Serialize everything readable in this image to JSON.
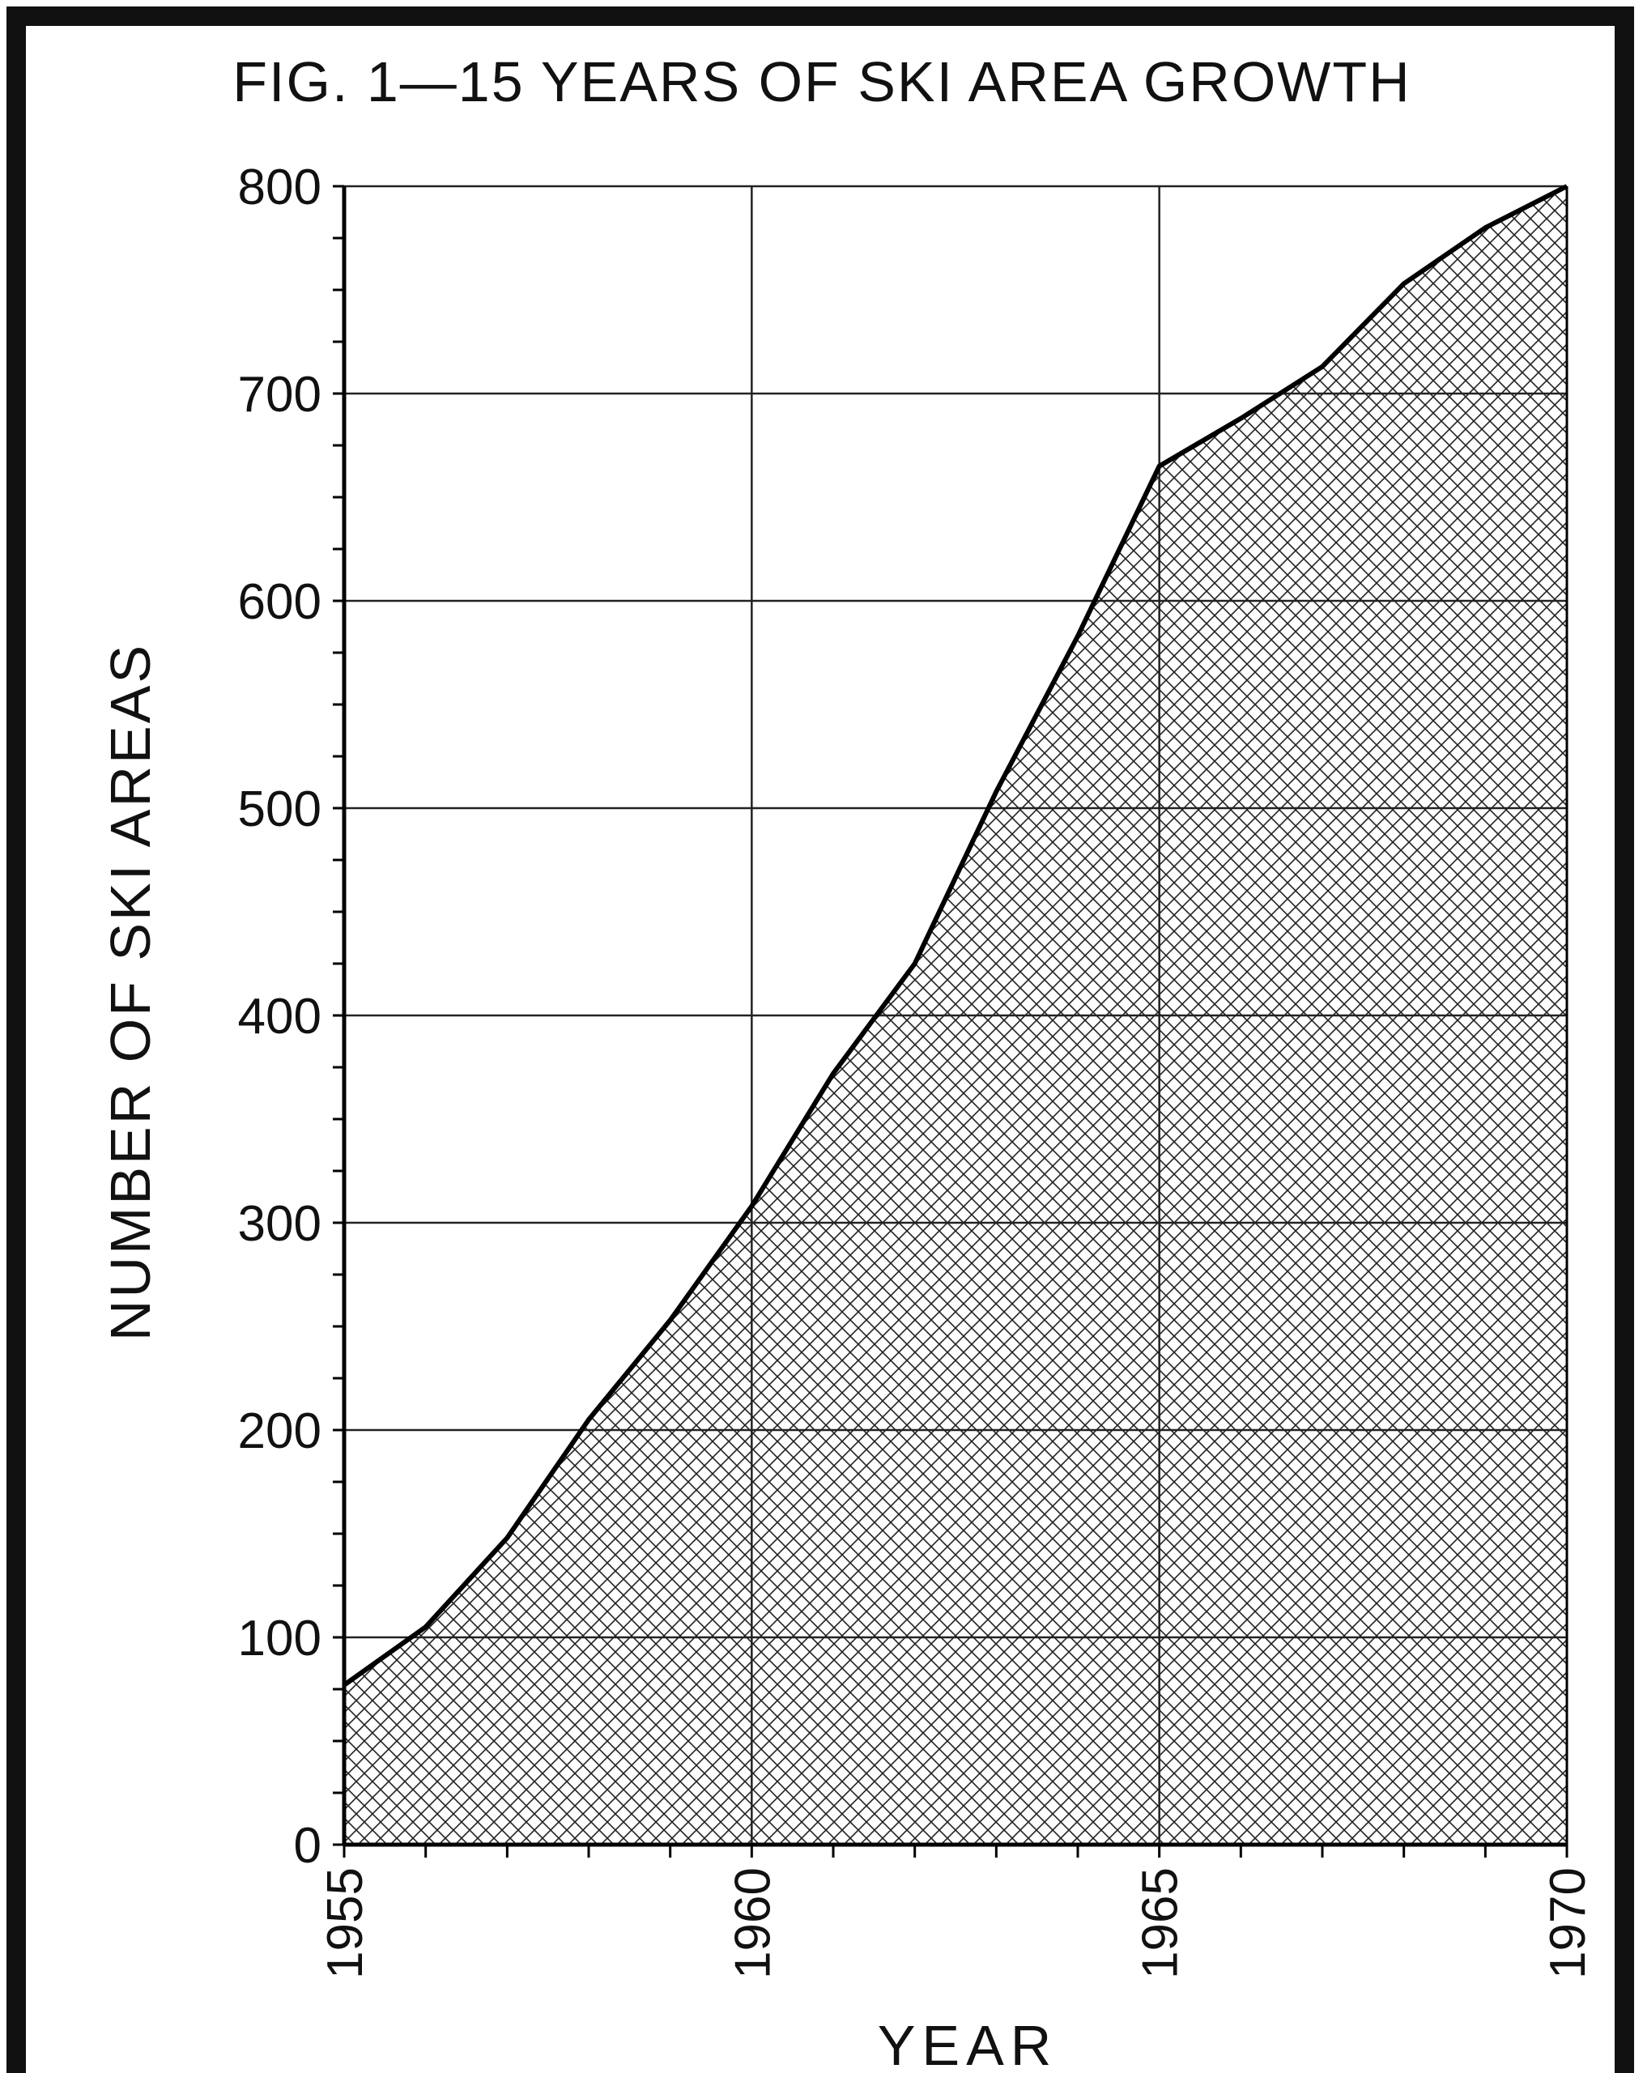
{
  "chart_data": {
    "type": "area",
    "title": "FIG. 1—15 YEARS OF SKI AREA GROWTH",
    "xlabel": "YEAR",
    "ylabel": "NUMBER OF SKI AREAS",
    "x_ticks": [
      "1955",
      "1960",
      "1965",
      "1970"
    ],
    "y_ticks": [
      "0",
      "100",
      "200",
      "300",
      "400",
      "500",
      "600",
      "700",
      "800"
    ],
    "xlim": [
      1955,
      1970
    ],
    "ylim": [
      0,
      800
    ],
    "grid": true,
    "fill_pattern": "crosshatch",
    "x": [
      1955,
      1956,
      1957,
      1958,
      1959,
      1960,
      1961,
      1962,
      1963,
      1964,
      1965,
      1966,
      1967,
      1968,
      1969,
      1970
    ],
    "series": [
      {
        "values": [
          77,
          105,
          148,
          205,
          253,
          308,
          372,
          425,
          508,
          583,
          665,
          688,
          713,
          753,
          780,
          800
        ]
      }
    ]
  }
}
